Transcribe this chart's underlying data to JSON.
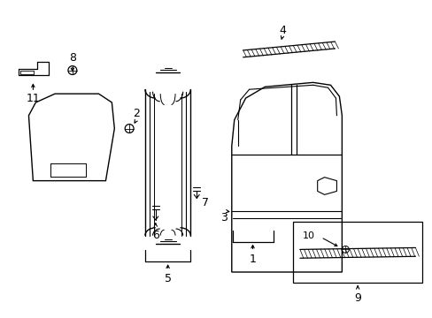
{
  "bg_color": "#ffffff",
  "line_color": "#000000",
  "fig_width": 4.89,
  "fig_height": 3.6,
  "dpi": 100,
  "font_size": 9
}
